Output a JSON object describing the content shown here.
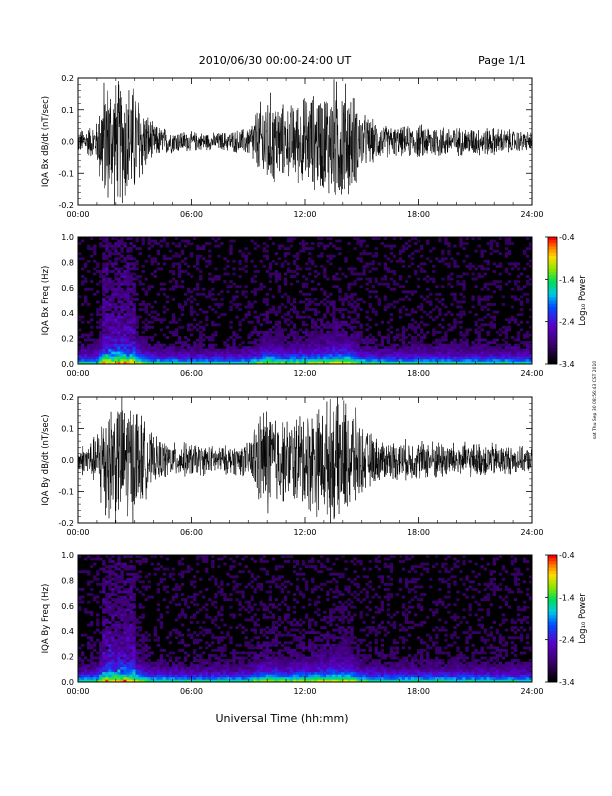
{
  "header": {
    "title": "2010/06/30  00:00-24:00 UT",
    "page": "Page 1/1"
  },
  "x_axis": {
    "title": "Universal Time (hh:mm)",
    "ticks": [
      "00:00",
      "06:00",
      "12:00",
      "18:00",
      "24:00"
    ]
  },
  "colorbar": {
    "label": "Log₁₀ Power",
    "ticks": [
      "-0.4",
      "-1.4",
      "-2.4",
      "-3.4"
    ]
  },
  "side_stamp": "sat Thu Sep 30 08:56:43 CST 2010",
  "chart_data": [
    {
      "type": "line",
      "ylabel": "IQA Bx dB/dt (nT/sec)",
      "xlim": [
        0,
        24
      ],
      "ylim": [
        -0.2,
        0.2
      ],
      "yticks": [
        "0.2",
        "0.1",
        "0.0",
        "-0.1",
        "-0.2"
      ],
      "envelope": {
        "hours": [
          0.0,
          0.5,
          1.0,
          1.3,
          1.5,
          2.0,
          2.5,
          3.0,
          3.5,
          4.0,
          5.0,
          6.0,
          7.0,
          8.0,
          9.0,
          9.5,
          10.0,
          11.0,
          12.0,
          13.0,
          13.5,
          14.0,
          14.5,
          15.0,
          16.0,
          17.0,
          18.0,
          19.0,
          20.0,
          21.0,
          22.0,
          23.0,
          24.0
        ],
        "amplitude": [
          0.04,
          0.05,
          0.07,
          0.22,
          0.22,
          0.22,
          0.22,
          0.2,
          0.12,
          0.06,
          0.04,
          0.035,
          0.03,
          0.035,
          0.05,
          0.12,
          0.18,
          0.12,
          0.16,
          0.18,
          0.22,
          0.22,
          0.18,
          0.1,
          0.06,
          0.05,
          0.06,
          0.06,
          0.05,
          0.05,
          0.05,
          0.04,
          0.035
        ]
      }
    },
    {
      "type": "heatmap",
      "ylabel": "IQA Bx Freq (Hz)",
      "xlim": [
        0,
        24
      ],
      "ylim": [
        0,
        1.0
      ],
      "yticks": [
        "1.0",
        "0.8",
        "0.6",
        "0.4",
        "0.2",
        "0.0"
      ],
      "zlim": [
        -3.4,
        -0.4
      ]
    },
    {
      "type": "line",
      "ylabel": "IQA By dB/dt (nT/sec)",
      "xlim": [
        0,
        24
      ],
      "ylim": [
        -0.2,
        0.2
      ],
      "yticks": [
        "0.2",
        "0.1",
        "0.0",
        "-0.1",
        "-0.2"
      ],
      "envelope": {
        "hours": [
          0.0,
          0.5,
          1.0,
          1.3,
          1.5,
          2.0,
          2.5,
          3.0,
          3.5,
          4.0,
          5.0,
          6.0,
          7.0,
          8.0,
          9.0,
          9.5,
          10.0,
          11.0,
          12.0,
          13.0,
          13.5,
          14.0,
          14.5,
          15.0,
          16.0,
          17.0,
          18.0,
          19.0,
          20.0,
          21.0,
          22.0,
          23.0,
          24.0
        ],
        "amplitude": [
          0.05,
          0.06,
          0.09,
          0.22,
          0.22,
          0.22,
          0.22,
          0.22,
          0.14,
          0.08,
          0.06,
          0.06,
          0.05,
          0.05,
          0.06,
          0.16,
          0.2,
          0.14,
          0.18,
          0.2,
          0.22,
          0.22,
          0.2,
          0.12,
          0.07,
          0.07,
          0.07,
          0.07,
          0.06,
          0.06,
          0.06,
          0.05,
          0.04
        ]
      }
    },
    {
      "type": "heatmap",
      "ylabel": "IQA By Freq (Hz)",
      "xlim": [
        0,
        24
      ],
      "ylim": [
        0,
        1.0
      ],
      "yticks": [
        "1.0",
        "0.8",
        "0.6",
        "0.4",
        "0.2",
        "0.0"
      ],
      "zlim": [
        -3.4,
        -0.4
      ]
    }
  ]
}
